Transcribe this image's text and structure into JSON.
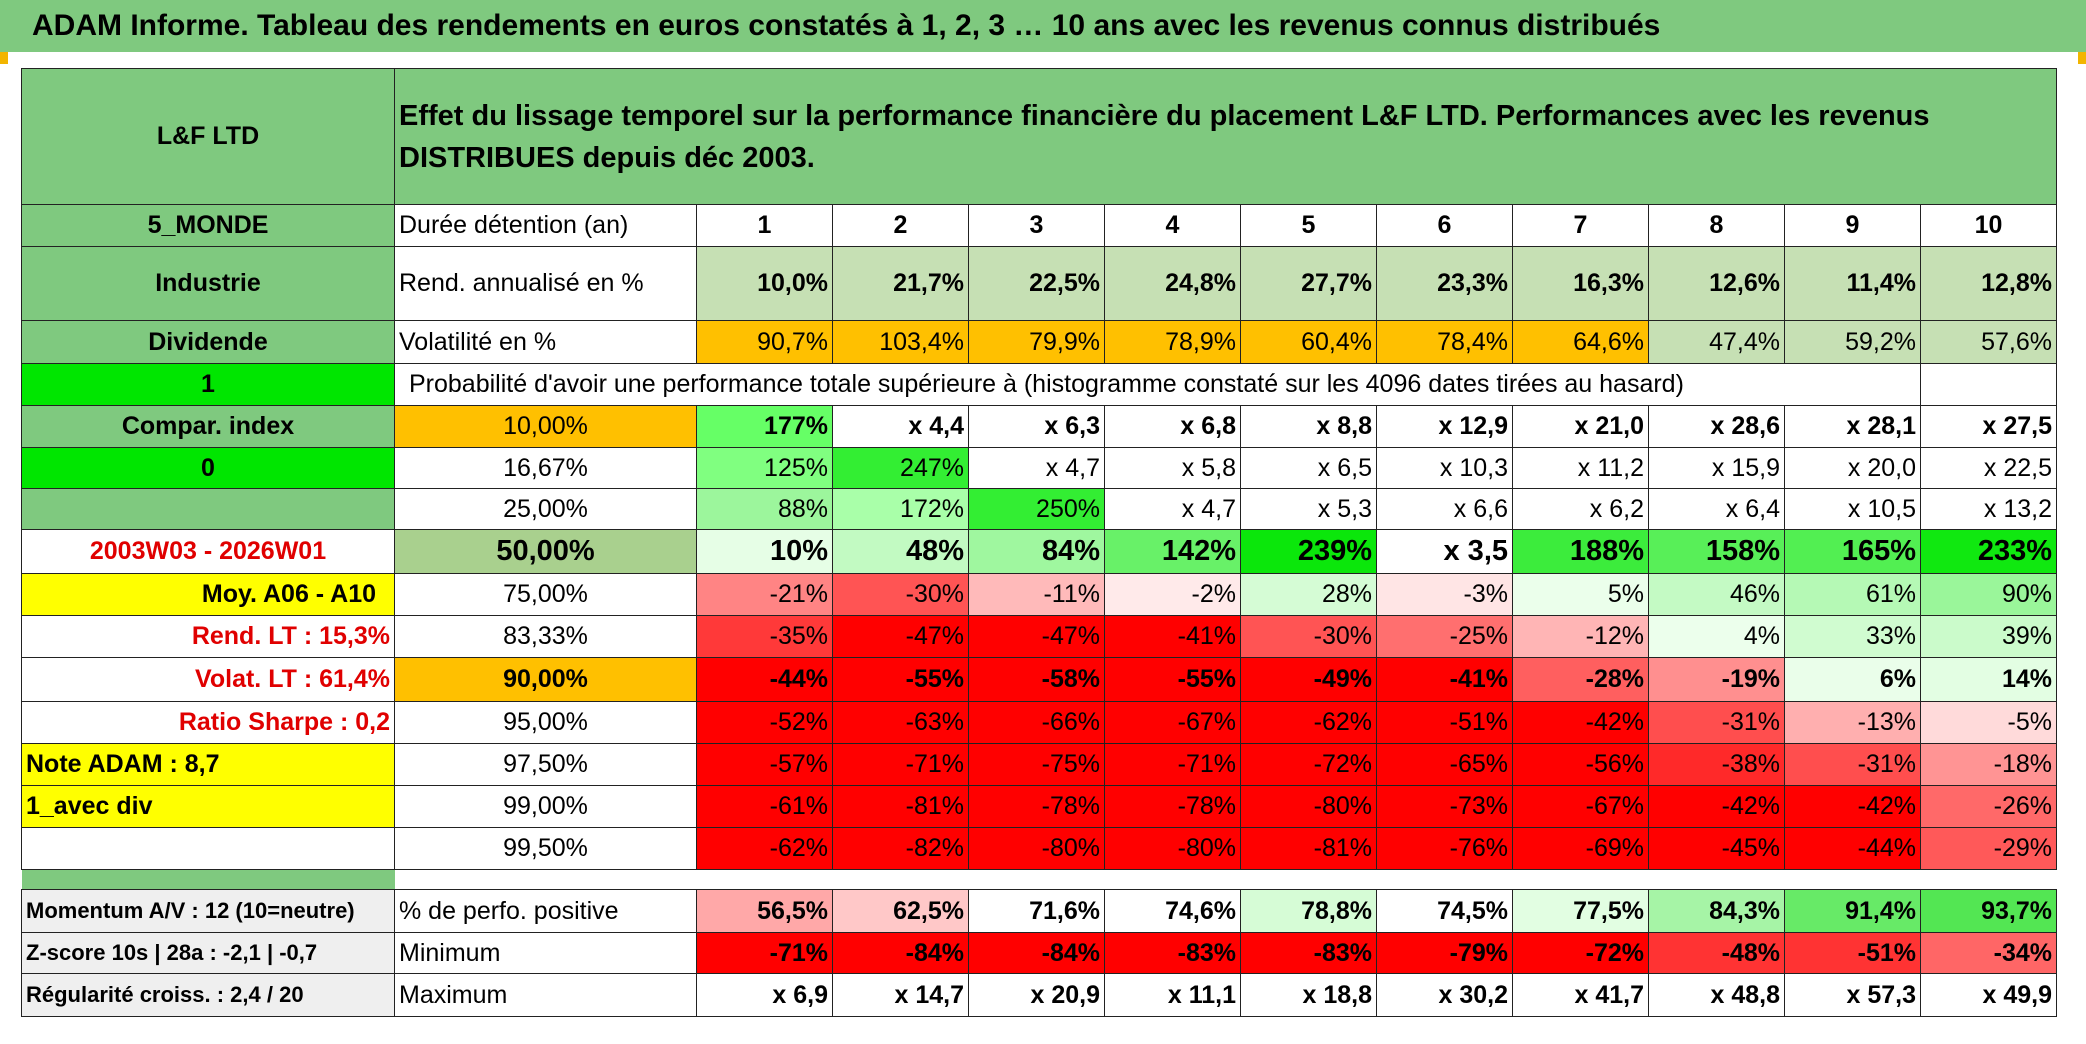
{
  "title": "ADAM Informe. Tableau des rendements en euros constatés à 1, 2, 3 … 10 ans avec les revenus connus distribués",
  "colors": {
    "header_green": "#7fc97f",
    "light_green": "#c6e0b4",
    "bright_green": "#00e600",
    "orange": "#ffc000",
    "yellow": "#ffff00",
    "red_text": "#e00000"
  },
  "fund": {
    "name": "L&F LTD",
    "zone": "5_MONDE",
    "sector": "Industrie",
    "income": "Dividende",
    "flag1": "1",
    "compar_label": "Compar. index",
    "flag2": "0",
    "period": "2003W03 - 2026W01",
    "moy": "Moy. A06 - A10",
    "rend_lt": "Rend. LT :    15,3%",
    "volat_lt": "Volat. LT :   61,4%",
    "sharpe": "Ratio Sharpe :    0,2",
    "note": "Note ADAM : 8,7",
    "variant": "1_avec div",
    "momentum": "Momentum A/V : 12 (10=neutre)",
    "zscore": "Z-score 10s | 28a : -2,1 | -0,7",
    "regularite": "Régularité croiss. : 2,4 / 20"
  },
  "header_text": "Effet du lissage temporel sur la performance financière du placement L&F LTD. Performances avec les revenus DISTRIBUES depuis déc 2003.",
  "labels": {
    "duree": "Durée détention (an)",
    "rend": "Rend. annualisé en %",
    "vol": "Volatilité en %",
    "proba": "Probabilité d'avoir une performance totale supérieure à (histogramme constaté sur les 4096 dates tirées au hasard)",
    "pos": "% de perfo. positive",
    "min": "Minimum",
    "max": "Maximum"
  },
  "years": [
    "1",
    "2",
    "3",
    "4",
    "5",
    "6",
    "7",
    "8",
    "9",
    "10"
  ],
  "rend": [
    "10,0%",
    "21,7%",
    "22,5%",
    "24,8%",
    "27,7%",
    "23,3%",
    "16,3%",
    "12,6%",
    "11,4%",
    "12,8%"
  ],
  "vol": [
    "90,7%",
    "103,4%",
    "79,9%",
    "78,9%",
    "60,4%",
    "78,4%",
    "64,6%",
    "47,4%",
    "59,2%",
    "57,6%"
  ],
  "prob_rows": [
    {
      "p": "10,00%",
      "v": [
        "177%",
        "x 4,4",
        "x 6,3",
        "x 6,8",
        "x 8,8",
        "x 12,9",
        "x 21,0",
        "x 28,6",
        "x 28,1",
        "x 27,5"
      ]
    },
    {
      "p": "16,67%",
      "v": [
        "125%",
        "247%",
        "x 4,7",
        "x 5,8",
        "x 6,5",
        "x 10,3",
        "x 11,2",
        "x 15,9",
        "x 20,0",
        "x 22,5"
      ]
    },
    {
      "p": "25,00%",
      "v": [
        "88%",
        "172%",
        "250%",
        "x 4,7",
        "x 5,3",
        "x 6,6",
        "x 6,2",
        "x 6,4",
        "x 10,5",
        "x 13,2"
      ]
    },
    {
      "p": "50,00%",
      "v": [
        "10%",
        "48%",
        "84%",
        "142%",
        "239%",
        "x 3,5",
        "188%",
        "158%",
        "165%",
        "233%"
      ]
    },
    {
      "p": "75,00%",
      "v": [
        "-21%",
        "-30%",
        "-11%",
        "-2%",
        "28%",
        "-3%",
        "5%",
        "46%",
        "61%",
        "90%"
      ]
    },
    {
      "p": "83,33%",
      "v": [
        "-35%",
        "-47%",
        "-47%",
        "-41%",
        "-30%",
        "-25%",
        "-12%",
        "4%",
        "33%",
        "39%"
      ]
    },
    {
      "p": "90,00%",
      "v": [
        "-44%",
        "-55%",
        "-58%",
        "-55%",
        "-49%",
        "-41%",
        "-28%",
        "-19%",
        "6%",
        "14%"
      ]
    },
    {
      "p": "95,00%",
      "v": [
        "-52%",
        "-63%",
        "-66%",
        "-67%",
        "-62%",
        "-51%",
        "-42%",
        "-31%",
        "-13%",
        "-5%"
      ]
    },
    {
      "p": "97,50%",
      "v": [
        "-57%",
        "-71%",
        "-75%",
        "-71%",
        "-72%",
        "-65%",
        "-56%",
        "-38%",
        "-31%",
        "-18%"
      ]
    },
    {
      "p": "99,00%",
      "v": [
        "-61%",
        "-81%",
        "-78%",
        "-78%",
        "-80%",
        "-73%",
        "-67%",
        "-42%",
        "-42%",
        "-26%"
      ]
    },
    {
      "p": "99,50%",
      "v": [
        "-62%",
        "-82%",
        "-80%",
        "-80%",
        "-81%",
        "-76%",
        "-69%",
        "-45%",
        "-44%",
        "-29%"
      ]
    }
  ],
  "pos": [
    "56,5%",
    "62,5%",
    "71,6%",
    "74,6%",
    "78,8%",
    "74,5%",
    "77,5%",
    "84,3%",
    "91,4%",
    "93,7%"
  ],
  "min": [
    "-71%",
    "-84%",
    "-84%",
    "-83%",
    "-83%",
    "-79%",
    "-72%",
    "-48%",
    "-51%",
    "-34%"
  ],
  "max": [
    "x 6,9",
    "x 14,7",
    "x 20,9",
    "x 11,1",
    "x 18,8",
    "x 30,2",
    "x 41,7",
    "x 48,8",
    "x 57,3",
    "x 49,9"
  ]
}
